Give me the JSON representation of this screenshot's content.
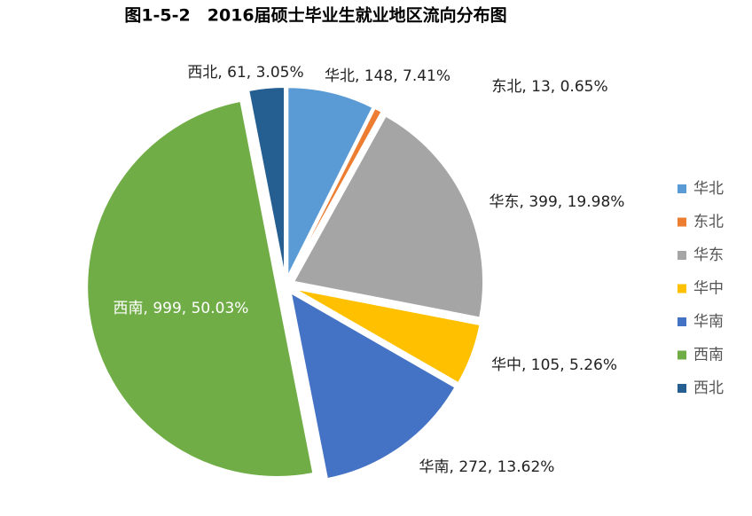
{
  "chart_data": {
    "type": "pie",
    "title": "图1-5-2　2016届硕士毕业生就业地区流向分布图",
    "categories": [
      "华北",
      "东北",
      "华东",
      "华中",
      "华南",
      "西南",
      "西北"
    ],
    "values": [
      148,
      13,
      399,
      105,
      272,
      999,
      61
    ],
    "value_labels": [
      "华北, 148, 7.41%",
      "东北, 13, 0.65%",
      "华东, 399, 19.98%",
      "华中, 105, 5.26%",
      "华南, 272, 13.62%",
      "西南, 999, 50.03%",
      "西北, 61, 3.05%"
    ],
    "colors": [
      "#5b9bd5",
      "#ed7d31",
      "#a5a5a5",
      "#ffc000",
      "#4472c4",
      "#70ad47",
      "#255e91"
    ],
    "legend": "right"
  }
}
